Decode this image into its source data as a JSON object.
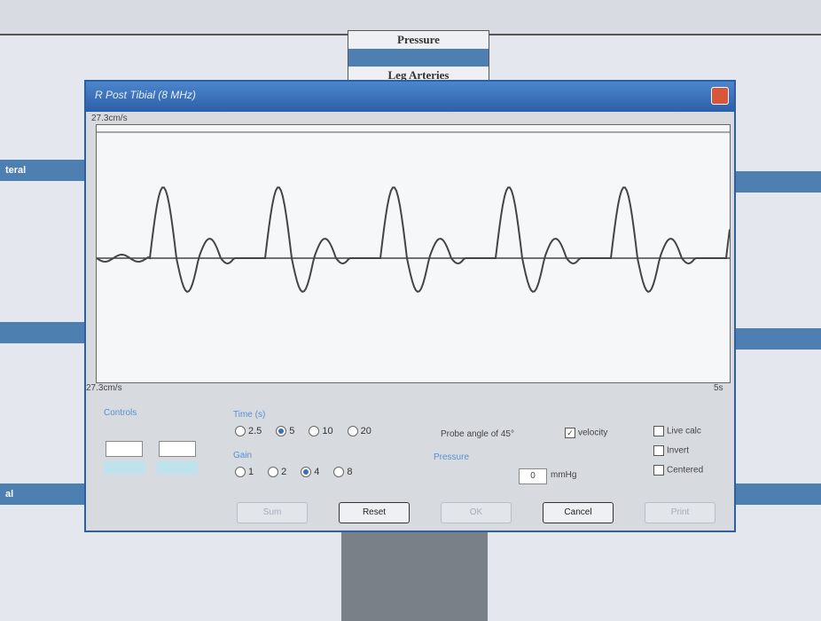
{
  "menu": [
    "Pressure",
    "Leg Arteries"
  ],
  "side_labels": [
    "teral",
    "al"
  ],
  "dialog": {
    "title": "R Post Tibial (8 MHz)",
    "scale_top": "27.3cm/s",
    "scale_bottom": "27.3cm/s",
    "time_end": "5s",
    "controls_label": "Controls",
    "time": {
      "label": "Time (s)",
      "options": [
        "2.5",
        "5",
        "10",
        "20"
      ],
      "selected": 1
    },
    "gain": {
      "label": "Gain",
      "options": [
        "1",
        "2",
        "4",
        "8"
      ],
      "selected": 2
    },
    "probe_angle": "Probe angle of 45°",
    "velocity": {
      "label": "velocity",
      "checked": true
    },
    "pressure": {
      "label": "Pressure",
      "value": "0",
      "unit": "mmHg"
    },
    "checks": [
      {
        "label": "Live calc",
        "checked": false
      },
      {
        "label": "Invert",
        "checked": false
      },
      {
        "label": "Centered",
        "checked": false
      }
    ],
    "buttons": [
      {
        "label": "Sum",
        "enabled": false
      },
      {
        "label": "Reset",
        "enabled": true
      },
      {
        "label": "OK",
        "enabled": false
      },
      {
        "label": "Cancel",
        "enabled": true
      },
      {
        "label": "Print",
        "enabled": false
      }
    ]
  }
}
